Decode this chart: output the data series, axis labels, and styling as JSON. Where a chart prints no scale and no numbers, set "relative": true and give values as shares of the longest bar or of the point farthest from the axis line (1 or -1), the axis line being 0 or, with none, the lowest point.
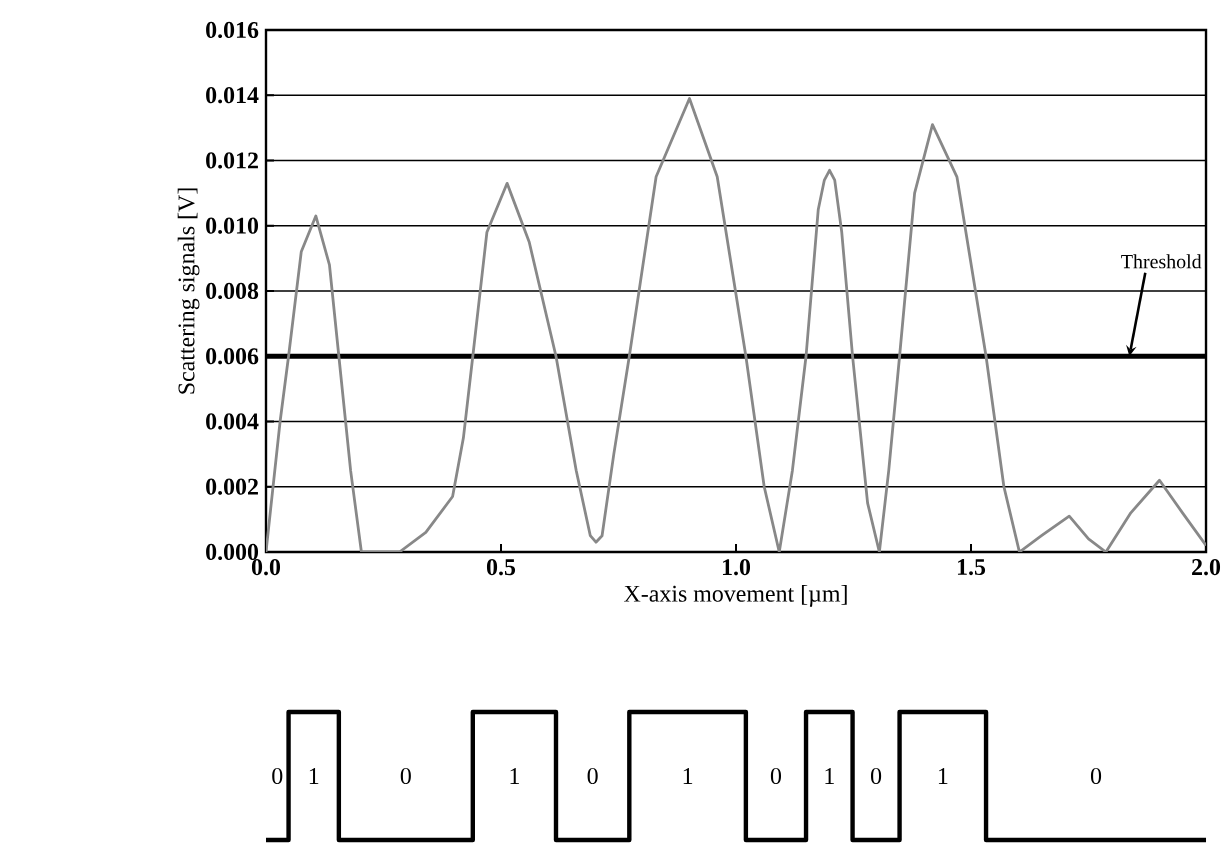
{
  "chart_data": [
    {
      "type": "line",
      "ylabel": "Scattering signals [V]",
      "xlabel": "X-axis movement [µm]",
      "xlim": [
        0,
        2
      ],
      "ylim": [
        0,
        0.016
      ],
      "xticks": [
        {
          "value": 0,
          "label": "0.0"
        },
        {
          "value": 0.5,
          "label": "0.5"
        },
        {
          "value": 1,
          "label": "1.0"
        },
        {
          "value": 1.5,
          "label": "1.5"
        },
        {
          "value": 2,
          "label": "2.0"
        }
      ],
      "yticks": [
        {
          "value": 0,
          "label": "0.000"
        },
        {
          "value": 0.002,
          "label": "0.002"
        },
        {
          "value": 0.004,
          "label": "0.004"
        },
        {
          "value": 0.006,
          "label": "0.006"
        },
        {
          "value": 0.008,
          "label": "0.008"
        },
        {
          "value": 0.01,
          "label": "0.010"
        },
        {
          "value": 0.012,
          "label": "0.012"
        },
        {
          "value": 0.014,
          "label": "0.014"
        },
        {
          "value": 0.016,
          "label": "0.016"
        }
      ],
      "grid": "y",
      "marker": "none",
      "line_style": "solid",
      "ref_lines": [
        {
          "axis": "y",
          "value": 0.006,
          "label": "Threshold",
          "color": "#000000"
        }
      ],
      "series": [
        {
          "color": "#888888",
          "x": [
            0,
            0.03,
            0.048,
            0.075,
            0.106,
            0.135,
            0.155,
            0.18,
            0.203,
            0.284,
            0.34,
            0.397,
            0.42,
            0.44,
            0.47,
            0.513,
            0.56,
            0.617,
            0.66,
            0.69,
            0.702,
            0.715,
            0.74,
            0.773,
            0.83,
            0.901,
            0.96,
            1.021,
            1.06,
            1.092,
            1.12,
            1.149,
            1.175,
            1.188,
            1.199,
            1.21,
            1.225,
            1.248,
            1.28,
            1.305,
            1.325,
            1.348,
            1.38,
            1.418,
            1.47,
            1.532,
            1.57,
            1.603,
            1.65,
            1.709,
            1.75,
            1.787,
            1.84,
            1.901,
            1.95,
            2.0
          ],
          "values": [
            0,
            0.004,
            0.006,
            0.0092,
            0.0103,
            0.0088,
            0.006,
            0.0025,
            0,
            0,
            0.0006,
            0.0017,
            0.0035,
            0.006,
            0.0098,
            0.0113,
            0.0095,
            0.006,
            0.0025,
            0.0005,
            0.0003,
            0.0005,
            0.003,
            0.006,
            0.0115,
            0.0139,
            0.0115,
            0.006,
            0.002,
            0,
            0.0025,
            0.006,
            0.0105,
            0.0114,
            0.0117,
            0.0114,
            0.0098,
            0.006,
            0.0015,
            0,
            0.0025,
            0.006,
            0.011,
            0.0131,
            0.0115,
            0.006,
            0.002,
            0,
            0.0005,
            0.0011,
            0.0004,
            0,
            0.0012,
            0.0022,
            0.0012,
            0.0002
          ]
        }
      ]
    },
    {
      "type": "step",
      "xlim": [
        0,
        2
      ],
      "relative": true,
      "annotations": [
        "0",
        "1",
        "0",
        "1",
        "0",
        "1",
        "0",
        "1",
        "0",
        "1",
        "0"
      ],
      "series": [
        {
          "color": "#000000",
          "x": [
            0,
            0.048,
            0.155,
            0.44,
            0.617,
            0.773,
            1.021,
            1.149,
            1.248,
            1.348,
            1.532,
            2.0
          ],
          "values": [
            0,
            1,
            0,
            1,
            0,
            1,
            0,
            1,
            0,
            1,
            0,
            0
          ]
        }
      ]
    }
  ]
}
